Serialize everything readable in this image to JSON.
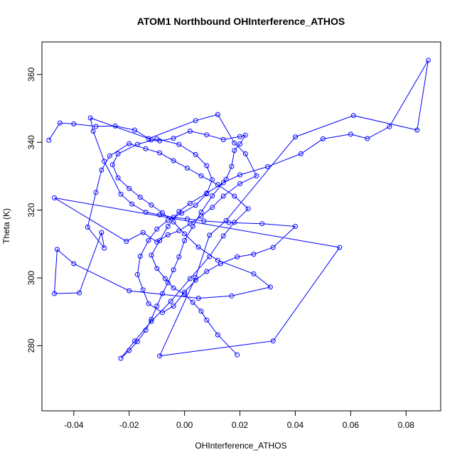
{
  "chart_data": {
    "type": "line",
    "title": "ATOM1 Northbound OHInterference_ATHOS",
    "xlabel": "OHInterference_ATHOS",
    "ylabel": "Theta (K)",
    "xlim": [
      -0.0515,
      0.0925
    ],
    "ylim": [
      260.8,
      369.6
    ],
    "x_ticks": [
      -0.04,
      -0.02,
      0.0,
      0.02,
      0.04,
      0.06,
      0.08
    ],
    "x_tick_labels": [
      "-0.04",
      "-0.02",
      "0.00",
      "0.02",
      "0.04",
      "0.06",
      "0.08"
    ],
    "y_ticks": [
      280,
      300,
      320,
      340,
      360
    ],
    "y_tick_labels": [
      "280",
      "300",
      "320",
      "340",
      "360"
    ],
    "grid": false,
    "legend": "none",
    "markers": "open-circle",
    "colors": {
      "series": "#0000ff",
      "axes": "#000000",
      "background": "#ffffff"
    },
    "series": [
      {
        "points": [
          [
            -0.049,
            340.6
          ],
          [
            -0.045,
            345.7
          ],
          [
            -0.04,
            345.4
          ],
          [
            -0.032,
            344.7
          ],
          [
            -0.025,
            344.8
          ],
          [
            -0.018,
            343.6
          ],
          [
            -0.012,
            340.7
          ],
          [
            -0.009,
            340.4
          ],
          [
            -0.004,
            341.2
          ],
          [
            0.002,
            343.3
          ],
          [
            0.008,
            342.2
          ],
          [
            0.014,
            340.8
          ],
          [
            0.02,
            341.7
          ],
          [
            0.022,
            342.1
          ],
          [
            0.02,
            339.5
          ],
          [
            0.018,
            337.6
          ],
          [
            0.017,
            332.9
          ],
          [
            0.015,
            329.1
          ],
          [
            0.01,
            324.2
          ],
          [
            0.006,
            319.4
          ],
          [
            0.003,
            315.2
          ],
          [
            0.0,
            311.0
          ],
          [
            -0.002,
            306.2
          ],
          [
            -0.004,
            302.4
          ],
          [
            -0.006,
            298.6
          ],
          [
            -0.008,
            295.4
          ],
          [
            -0.01,
            291.7
          ],
          [
            -0.012,
            287.8
          ],
          [
            -0.014,
            284.6
          ],
          [
            -0.017,
            281.2
          ],
          [
            -0.02,
            278.6
          ],
          [
            -0.023,
            276.3
          ],
          [
            -0.018,
            281.4
          ],
          [
            -0.012,
            287.2
          ],
          [
            -0.005,
            293.1
          ],
          [
            0.002,
            299.8
          ],
          [
            0.009,
            306.3
          ],
          [
            0.014,
            312.4
          ],
          [
            0.018,
            316.4
          ],
          [
            0.023,
            320.4
          ],
          [
            0.018,
            324.1
          ],
          [
            0.012,
            327.5
          ],
          [
            0.006,
            330.1
          ],
          [
            0.001,
            332.4
          ],
          [
            -0.004,
            334.6
          ],
          [
            -0.009,
            336.9
          ],
          [
            -0.014,
            338.1
          ],
          [
            -0.02,
            339.6
          ],
          [
            -0.027,
            336.0
          ],
          [
            -0.03,
            331.8
          ],
          [
            -0.032,
            325.2
          ],
          [
            -0.035,
            315.0
          ],
          [
            -0.029,
            308.8
          ],
          [
            -0.03,
            313.4
          ],
          [
            -0.038,
            295.6
          ],
          [
            -0.047,
            295.4
          ],
          [
            -0.046,
            308.4
          ],
          [
            -0.04,
            304.2
          ],
          [
            -0.02,
            296.2
          ],
          [
            0.005,
            294.0
          ],
          [
            0.017,
            294.7
          ],
          [
            0.031,
            297.3
          ],
          [
            0.025,
            301.2
          ],
          [
            0.012,
            305.2
          ],
          [
            0.005,
            309.1
          ],
          [
            0.0,
            313.0
          ],
          [
            -0.004,
            316.5
          ],
          [
            -0.008,
            319.2
          ],
          [
            -0.012,
            321.5
          ],
          [
            -0.016,
            323.8
          ],
          [
            -0.02,
            326.4
          ],
          [
            -0.024,
            329.5
          ],
          [
            -0.026,
            333.4
          ],
          [
            -0.024,
            336.6
          ],
          [
            -0.017,
            339.4
          ],
          [
            -0.01,
            341.0
          ],
          [
            -0.002,
            339.4
          ],
          [
            0.004,
            336.4
          ],
          [
            0.008,
            333.1
          ],
          [
            0.01,
            329.0
          ],
          [
            0.008,
            324.8
          ],
          [
            0.004,
            321.4
          ],
          [
            -0.001,
            319.1
          ],
          [
            -0.006,
            317.0
          ],
          [
            -0.01,
            314.4
          ],
          [
            -0.013,
            311.1
          ],
          [
            -0.016,
            306.4
          ],
          [
            -0.017,
            301.0
          ],
          [
            -0.015,
            296.5
          ],
          [
            -0.013,
            292.4
          ],
          [
            -0.008,
            289.8
          ],
          [
            -0.004,
            291.7
          ],
          [
            0.0,
            295.8
          ],
          [
            0.004,
            299.3
          ],
          [
            0.008,
            301.9
          ],
          [
            0.013,
            304.2
          ],
          [
            0.019,
            306.2
          ],
          [
            0.025,
            307.0
          ],
          [
            0.032,
            309.0
          ],
          [
            0.04,
            315.2
          ],
          [
            0.028,
            316.0
          ],
          [
            0.016,
            316.3
          ],
          [
            0.007,
            316.8
          ],
          [
            0.001,
            317.4
          ],
          [
            -0.004,
            317.9
          ],
          [
            -0.009,
            318.6
          ],
          [
            -0.014,
            319.4
          ],
          [
            -0.019,
            321.8
          ],
          [
            -0.023,
            324.7
          ],
          [
            -0.029,
            334.4
          ],
          [
            -0.033,
            343.3
          ],
          [
            -0.034,
            347.2
          ],
          [
            -0.013,
            341.1
          ],
          [
            0.004,
            346.4
          ],
          [
            0.012,
            348.2
          ],
          [
            0.018,
            339.8
          ],
          [
            0.022,
            336.6
          ],
          [
            0.026,
            330.1
          ],
          [
            0.02,
            327.8
          ],
          [
            0.014,
            324.1
          ],
          [
            0.01,
            320.8
          ],
          [
            0.006,
            318.2
          ],
          [
            0.002,
            316.0
          ],
          [
            -0.002,
            313.9
          ],
          [
            -0.006,
            312.7
          ],
          [
            -0.01,
            310.6
          ],
          [
            -0.015,
            313.4
          ],
          [
            -0.021,
            310.8
          ],
          [
            -0.047,
            323.6
          ],
          [
            0.056,
            309.0
          ],
          [
            0.032,
            281.4
          ],
          [
            -0.009,
            277.0
          ],
          [
            0.004,
            300.1
          ],
          [
            0.009,
            312.6
          ],
          [
            0.015,
            316.9
          ],
          [
            0.04,
            341.6
          ],
          [
            0.061,
            347.9
          ],
          [
            0.084,
            343.6
          ],
          [
            0.088,
            364.2
          ],
          [
            0.074,
            344.6
          ],
          [
            0.066,
            341.1
          ],
          [
            0.06,
            342.4
          ],
          [
            0.05,
            341.0
          ],
          [
            0.042,
            336.6
          ],
          [
            0.03,
            332.8
          ],
          [
            0.02,
            330.4
          ],
          [
            0.014,
            328.1
          ],
          [
            0.008,
            325.0
          ],
          [
            0.002,
            322.0
          ],
          [
            -0.002,
            319.6
          ],
          [
            -0.006,
            315.2
          ],
          [
            -0.009,
            311.0
          ],
          [
            -0.012,
            306.7
          ],
          [
            -0.01,
            302.8
          ],
          [
            -0.007,
            299.8
          ],
          [
            -0.004,
            297.0
          ],
          [
            0.0,
            295.2
          ],
          [
            0.003,
            292.8
          ],
          [
            0.006,
            290.2
          ],
          [
            0.008,
            287.6
          ],
          [
            0.012,
            283.2
          ],
          [
            0.019,
            277.3
          ]
        ]
      }
    ]
  }
}
